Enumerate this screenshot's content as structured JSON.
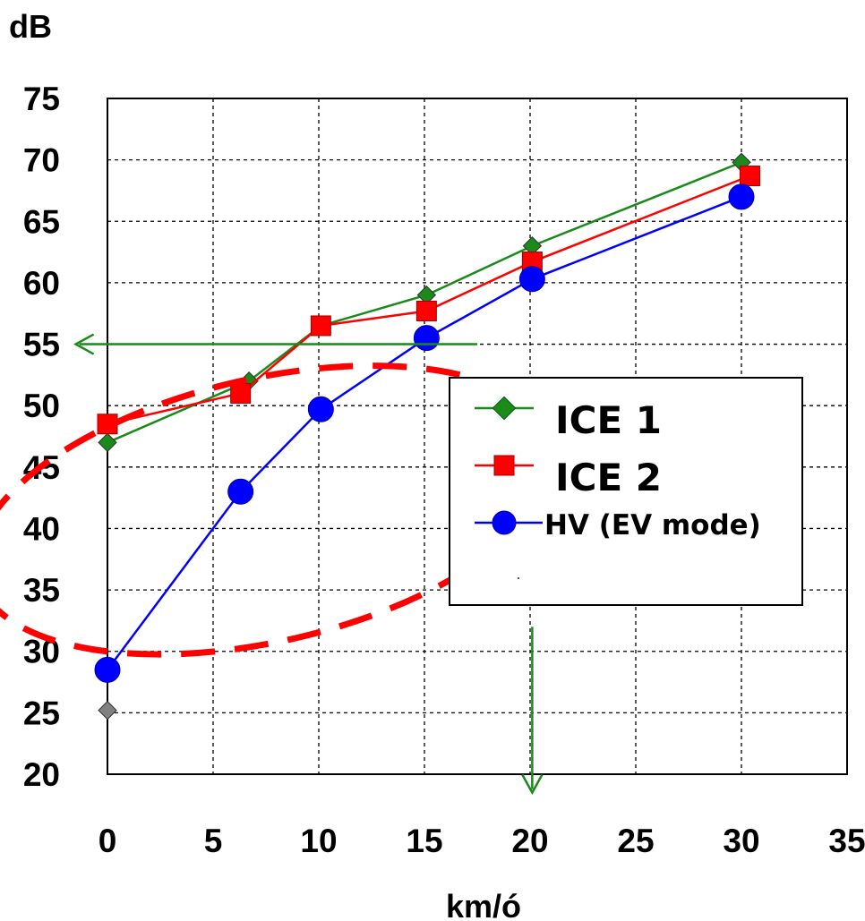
{
  "chart_data": {
    "type": "line",
    "ylabel": "dB",
    "xlabel": "km/ó",
    "xlim": [
      0,
      35
    ],
    "ylim": [
      20,
      75
    ],
    "xticks": [
      "0",
      "5",
      "10",
      "15",
      "20",
      "25",
      "30",
      "35"
    ],
    "yticks": [
      "75",
      "70",
      "65",
      "60",
      "55",
      "50",
      "45",
      "40",
      "35",
      "30",
      "25",
      "20"
    ],
    "grid": "dashed",
    "legend_placement": "right-center",
    "series": [
      {
        "name": "ICE 1",
        "color": "#1a8a1a",
        "marker": "diamond",
        "x": [
          0,
          6.7,
          10.1,
          15.1,
          20.1,
          30
        ],
        "y": [
          47,
          52,
          56.5,
          59,
          63,
          69.8
        ]
      },
      {
        "name": "ICE 2",
        "color": "#ff0000",
        "marker": "square",
        "x": [
          0,
          6.3,
          10.1,
          15.1,
          20.1,
          30.4
        ],
        "y": [
          48.5,
          51,
          56.5,
          57.7,
          61.7,
          68.7
        ]
      },
      {
        "name": "HV (EV mode)",
        "color": "#0000ff",
        "marker": "circle",
        "x": [
          0,
          6.3,
          10.1,
          15.1,
          20.1,
          30
        ],
        "y": [
          28.5,
          43,
          49.7,
          55.5,
          60.3,
          67
        ]
      }
    ],
    "extra_points": [
      {
        "x": 0,
        "y": 25.2,
        "marker": "diamond",
        "color": "#808080"
      }
    ],
    "annotations": [
      {
        "type": "arrow",
        "direction": "left",
        "color": "#1a8a1a",
        "y": 55,
        "x_from": 17.5,
        "x_to": -1.5
      },
      {
        "type": "arrow",
        "direction": "down",
        "color": "#1a8a1a",
        "x": 20.1,
        "y_from": 32,
        "y_to": 18.5
      },
      {
        "type": "dashed-ellipse",
        "color": "#ff0000",
        "cx": 7.5,
        "cy": 41.5,
        "rx": 14,
        "ry": 10.7,
        "rotate_deg": -13
      }
    ]
  }
}
